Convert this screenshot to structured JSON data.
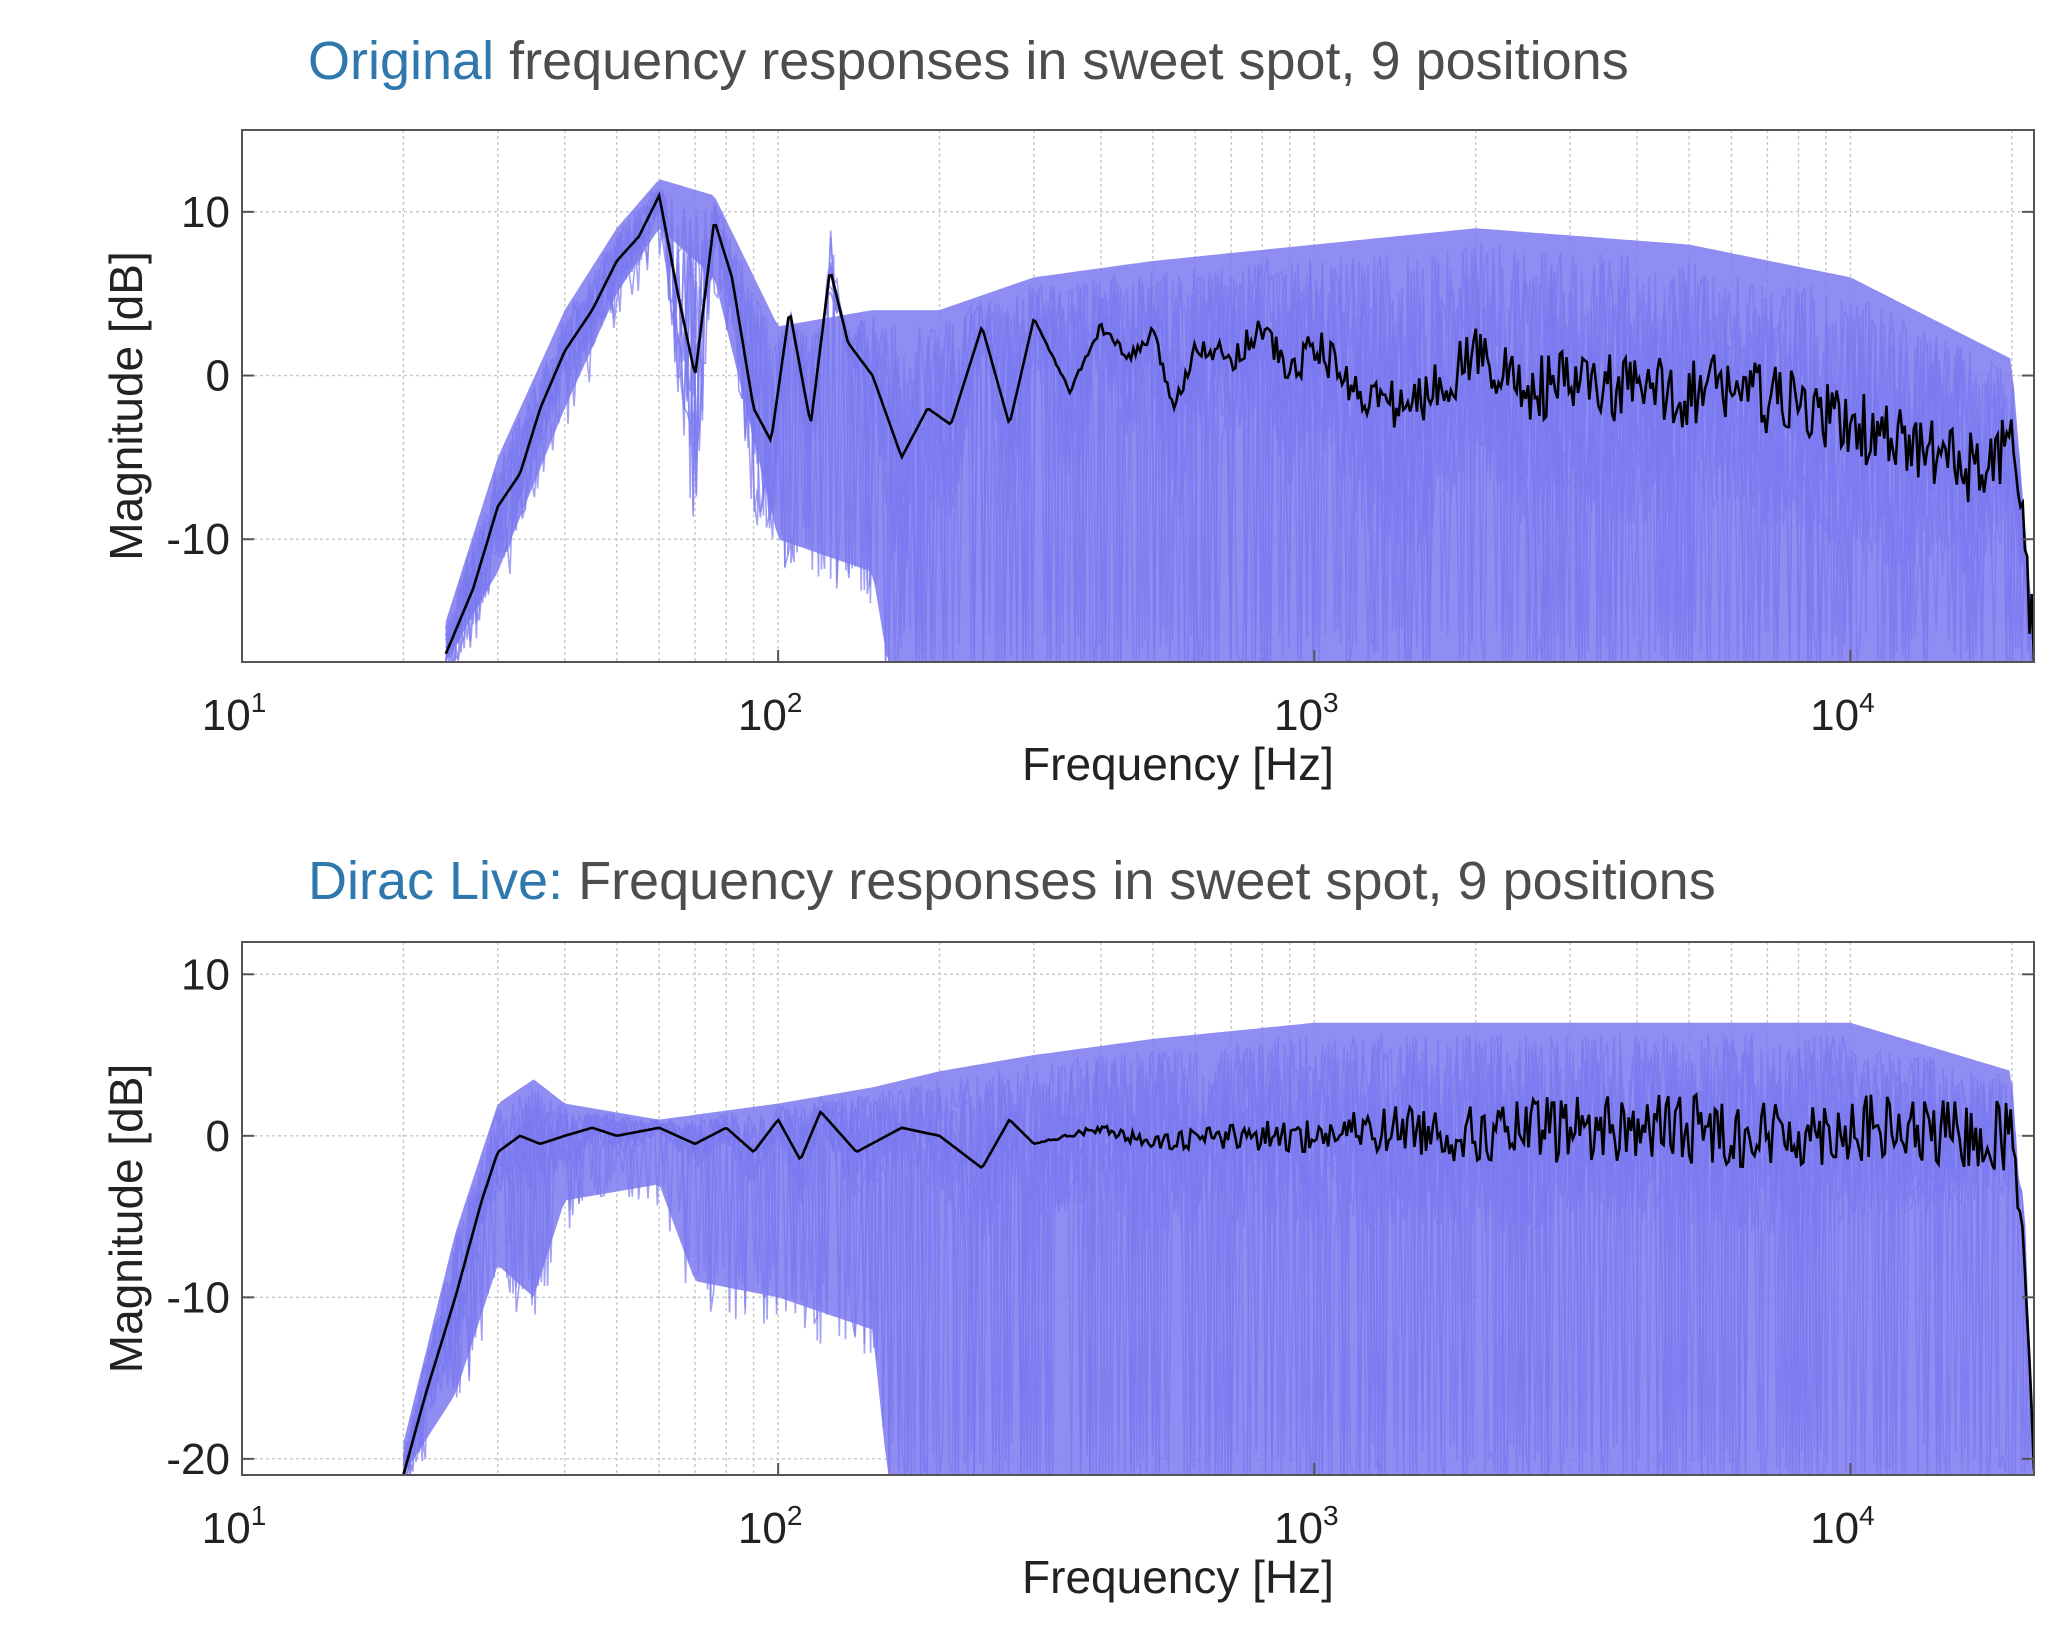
{
  "colors": {
    "title_accent": "#2f78ad",
    "title_text": "#4d4d4d",
    "individual_positions": "#7b79f0",
    "average_response": "#000000",
    "grid": "#c8c8c8"
  },
  "chart_data": [
    {
      "type": "line",
      "title_accent": "Original",
      "title_rest": " frequency responses in sweet spot, 9 positions",
      "xlabel": "Frequency [Hz]",
      "ylabel": "Magnitude [dB]",
      "xscale": "log",
      "xlim": [
        10,
        22000
      ],
      "ylim": [
        -17.5,
        15
      ],
      "grid": true,
      "xticks": [
        10,
        100,
        1000,
        10000
      ],
      "xtick_labels": [
        {
          "base": "10",
          "exp": "1"
        },
        {
          "base": "10",
          "exp": "2"
        },
        {
          "base": "10",
          "exp": "3"
        },
        {
          "base": "10",
          "exp": "4"
        }
      ],
      "yticks": [
        10,
        0,
        -10
      ],
      "ytick_labels": [
        "10",
        "0",
        "-10"
      ],
      "series": [
        {
          "role": "average",
          "color": "#000000",
          "x": [
            24,
            27,
            30,
            33,
            36,
            40,
            45,
            50,
            55,
            60,
            65,
            70,
            76,
            82,
            90,
            97,
            105,
            115,
            125,
            135,
            150,
            170,
            190,
            210,
            240,
            270,
            300,
            350,
            400,
            450,
            500,
            550,
            600,
            700,
            800,
            900,
            1000,
            1200,
            1500,
            1800,
            2000,
            2500,
            3000,
            4000,
            5000,
            6000,
            7000,
            8000,
            10000,
            12000,
            15000,
            18000,
            20000,
            21000,
            22000
          ],
          "y": [
            -17,
            -13,
            -8,
            -6,
            -2,
            1.5,
            4,
            7,
            8.5,
            11,
            5,
            0,
            9.5,
            6,
            -2,
            -4,
            4,
            -3,
            6.5,
            2,
            0,
            -5,
            -2,
            -3,
            3,
            -3,
            3.5,
            -1,
            3,
            1,
            2.5,
            -2,
            2,
            1,
            3,
            0,
            2,
            -1,
            -2,
            0,
            1.5,
            -1,
            -0.5,
            -1,
            -1,
            -0.5,
            -1.5,
            -2,
            -3,
            -4,
            -5,
            -6,
            -4,
            -10,
            -17
          ]
        },
        {
          "role": "band_high",
          "color": "#7b79f0",
          "x": [
            24,
            30,
            40,
            50,
            60,
            76,
            100,
            150,
            200,
            300,
            500,
            1000,
            2000,
            5000,
            10000,
            20000,
            22000
          ],
          "y": [
            -15,
            -5,
            4,
            9,
            12,
            11,
            3,
            4,
            4,
            6,
            7,
            8,
            9,
            8,
            6,
            1,
            -16
          ]
        },
        {
          "role": "band_low",
          "color": "#7b79f0",
          "x": [
            24,
            30,
            40,
            50,
            60,
            76,
            100,
            150,
            160,
            200,
            300,
            500,
            1000,
            2000,
            5000,
            10000,
            20000,
            22000
          ],
          "y": [
            -17.5,
            -12,
            -2,
            5,
            9,
            6,
            -10,
            -12,
            -17.5,
            -17.5,
            -17.5,
            -17.5,
            -17.5,
            -17.5,
            -17.5,
            -17.5,
            -17.5,
            -17.5
          ]
        }
      ]
    },
    {
      "type": "line",
      "title_accent": "Dirac Live:",
      "title_rest": " Frequency responses in sweet spot, 9 positions",
      "xlabel": "Frequency [Hz]",
      "ylabel": "Magnitude [dB]",
      "xscale": "log",
      "xlim": [
        10,
        22000
      ],
      "ylim": [
        -21,
        12
      ],
      "grid": true,
      "xticks": [
        10,
        100,
        1000,
        10000
      ],
      "xtick_labels": [
        {
          "base": "10",
          "exp": "1"
        },
        {
          "base": "10",
          "exp": "2"
        },
        {
          "base": "10",
          "exp": "3"
        },
        {
          "base": "10",
          "exp": "4"
        }
      ],
      "yticks": [
        10,
        0,
        -10,
        -20
      ],
      "ytick_labels": [
        "10",
        "0",
        "-10",
        "-20"
      ],
      "series": [
        {
          "role": "average",
          "color": "#000000",
          "x": [
            20,
            22,
            25,
            28,
            30,
            33,
            36,
            40,
            45,
            50,
            60,
            70,
            80,
            90,
            100,
            110,
            120,
            140,
            170,
            200,
            240,
            270,
            300,
            400,
            500,
            700,
            1000,
            1500,
            2000,
            3000,
            5000,
            7000,
            10000,
            15000,
            20000,
            21000,
            22000
          ],
          "y": [
            -21,
            -16,
            -10,
            -4,
            -1,
            0,
            -0.5,
            0,
            0.5,
            0,
            0.5,
            -0.5,
            0.5,
            -1,
            1,
            -1.5,
            1.5,
            -1,
            0.5,
            0,
            -2,
            1,
            -0.5,
            0.5,
            -0.5,
            0,
            0,
            0.5,
            0,
            0.5,
            0.5,
            0,
            0.5,
            0,
            0,
            -5,
            -20
          ]
        },
        {
          "role": "band_high",
          "color": "#7b79f0",
          "x": [
            20,
            25,
            30,
            35,
            40,
            60,
            100,
            150,
            200,
            300,
            500,
            1000,
            2000,
            5000,
            10000,
            20000,
            22000
          ],
          "y": [
            -19,
            -6,
            2,
            3.5,
            2,
            1,
            2,
            3,
            4,
            5,
            6,
            7,
            7,
            7,
            7,
            4,
            -18
          ]
        },
        {
          "role": "band_low",
          "color": "#7b79f0",
          "x": [
            20,
            25,
            30,
            35,
            40,
            60,
            70,
            100,
            150,
            160,
            200,
            300,
            500,
            1000,
            2000,
            5000,
            10000,
            20000,
            22000
          ],
          "y": [
            -21,
            -16,
            -8,
            -10,
            -4,
            -3,
            -9,
            -10,
            -12,
            -21,
            -21,
            -21,
            -21,
            -21,
            -21,
            -21,
            -21,
            -21,
            -21
          ]
        }
      ]
    }
  ]
}
